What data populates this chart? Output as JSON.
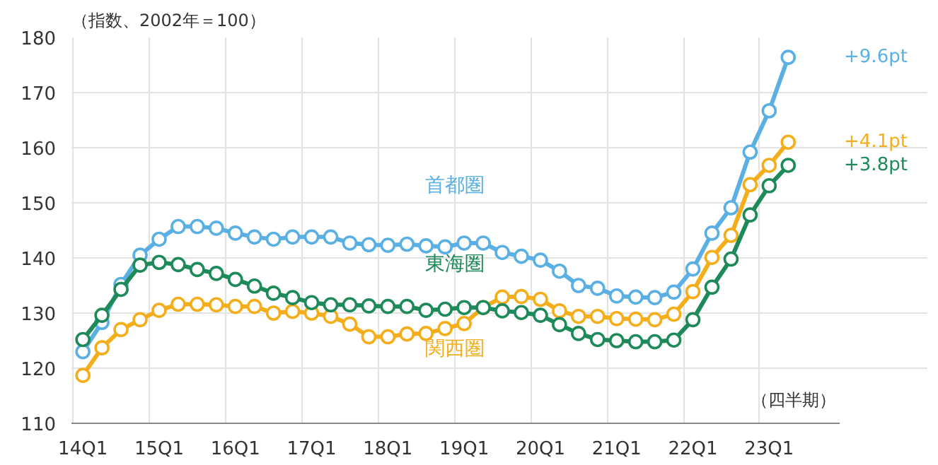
{
  "chart_data": {
    "type": "line",
    "ylabel": "（指数、2002年＝100）",
    "categories": [
      "14Q1",
      null,
      null,
      null,
      "15Q1",
      null,
      null,
      null,
      "16Q1",
      null,
      null,
      null,
      "17Q1",
      null,
      null,
      null,
      "18Q1",
      null,
      null,
      null,
      "19Q1",
      null,
      null,
      null,
      "20Q1",
      null,
      null,
      null,
      "21Q1",
      null,
      null,
      null,
      "22Q1",
      null,
      null,
      null,
      "23Q1",
      null
    ],
    "series": [
      {
        "name": "首都圏",
        "color": "#5aafe3",
        "values": [
          123.0,
          128.3,
          135.2,
          140.5,
          143.4,
          145.7,
          145.7,
          145.4,
          144.5,
          143.8,
          143.4,
          143.8,
          143.8,
          143.8,
          142.7,
          142.4,
          142.3,
          142.5,
          142.2,
          142.0,
          142.7,
          142.7,
          141.0,
          140.3,
          139.6,
          137.6,
          135.0,
          134.5,
          133.1,
          132.9,
          132.8,
          133.8,
          138.0,
          144.5,
          149.1,
          159.2,
          166.7,
          176.4
        ]
      },
      {
        "name": "関西圏",
        "color": "#f5ae1b",
        "values": [
          118.7,
          123.7,
          127.0,
          128.8,
          130.5,
          131.6,
          131.6,
          131.5,
          131.2,
          131.2,
          130.0,
          130.3,
          130.0,
          129.4,
          128.0,
          125.7,
          125.7,
          126.2,
          126.3,
          127.2,
          128.1,
          131.0,
          132.9,
          133.0,
          132.5,
          130.4,
          129.4,
          129.4,
          129.0,
          128.9,
          128.8,
          129.8,
          133.9,
          140.1,
          144.1,
          153.3,
          156.8,
          161.0
        ]
      },
      {
        "name": "東海圏",
        "color": "#1e8a5a",
        "values": [
          125.2,
          129.6,
          134.3,
          138.7,
          139.2,
          138.8,
          137.9,
          137.2,
          136.1,
          134.9,
          133.6,
          132.8,
          131.9,
          131.5,
          131.5,
          131.3,
          131.2,
          131.2,
          130.5,
          130.7,
          131.0,
          131.0,
          130.4,
          130.1,
          129.6,
          127.9,
          126.3,
          125.2,
          125.0,
          124.8,
          124.8,
          125.1,
          128.8,
          134.7,
          139.8,
          147.8,
          153.1,
          156.8
        ]
      }
    ],
    "ylim": [
      110,
      180
    ],
    "yticks": [
      110,
      120,
      130,
      140,
      150,
      160,
      170,
      180
    ],
    "grid": true,
    "marker": "circle",
    "line_style": "solid",
    "annotations": [
      "+9.6pt",
      "+4.1pt",
      "+3.8pt",
      "（四半期）"
    ]
  }
}
